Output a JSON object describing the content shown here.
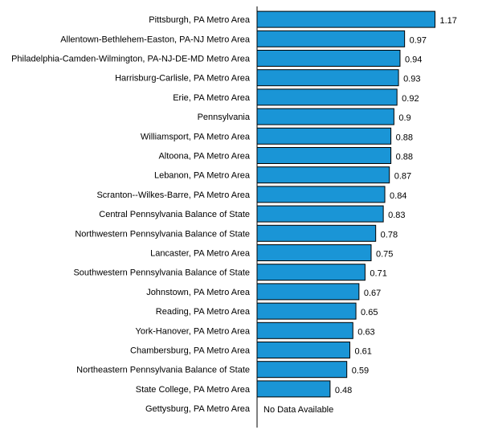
{
  "chart_data": {
    "type": "bar",
    "orientation": "horizontal",
    "categories": [
      "Pittsburgh, PA Metro Area",
      "Allentown-Bethlehem-Easton, PA-NJ Metro Area",
      "Philadelphia-Camden-Wilmington, PA-NJ-DE-MD Metro Area",
      "Harrisburg-Carlisle, PA Metro Area",
      "Erie, PA Metro Area",
      "Pennsylvania",
      "Williamsport, PA Metro Area",
      "Altoona, PA Metro Area",
      "Lebanon, PA Metro Area",
      "Scranton--Wilkes-Barre, PA Metro Area",
      "Central Pennsylvania Balance of State",
      "Northwestern Pennsylvania Balance of State",
      "Lancaster, PA Metro Area",
      "Southwestern Pennsylvania Balance of State",
      "Johnstown, PA Metro Area",
      "Reading, PA Metro Area",
      "York-Hanover, PA Metro Area",
      "Chambersburg, PA Metro Area",
      "Northeastern Pennsylvania Balance of State",
      "State College, PA Metro Area",
      "Gettysburg, PA Metro Area"
    ],
    "values": [
      1.17,
      0.97,
      0.94,
      0.93,
      0.92,
      0.9,
      0.88,
      0.88,
      0.87,
      0.84,
      0.83,
      0.78,
      0.75,
      0.71,
      0.67,
      0.65,
      0.63,
      0.61,
      0.59,
      0.48,
      null
    ],
    "value_labels": [
      "1.17",
      "0.97",
      "0.94",
      "0.93",
      "0.92",
      "0.9",
      "0.88",
      "0.88",
      "0.87",
      "0.84",
      "0.83",
      "0.78",
      "0.75",
      "0.71",
      "0.67",
      "0.65",
      "0.63",
      "0.61",
      "0.59",
      "0.48",
      "No Data Available"
    ],
    "xlim": [
      0,
      1.17
    ],
    "grid": false,
    "bar_color": "#1a95d6"
  }
}
